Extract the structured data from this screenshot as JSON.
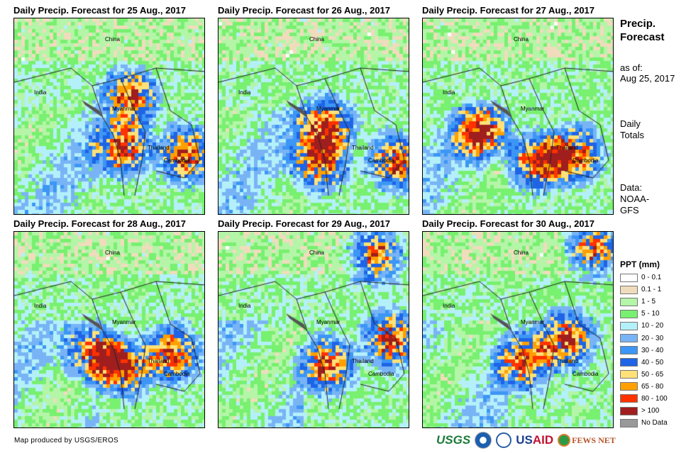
{
  "panels": [
    {
      "title": "Daily Precip. Forecast for 25 Aug., 2017"
    },
    {
      "title": "Daily Precip. Forecast for 26 Aug., 2017"
    },
    {
      "title": "Daily Precip. Forecast for 27 Aug., 2017"
    },
    {
      "title": "Daily Precip. Forecast for 28 Aug., 2017"
    },
    {
      "title": "Daily Precip. Forecast for 29 Aug., 2017"
    },
    {
      "title": "Daily Precip. Forecast for 30 Aug., 2017"
    }
  ],
  "map_labels": {
    "china": "China",
    "india": "India",
    "myanmar": "Myanmar",
    "thailand": "Thailand",
    "cambodia": "Cambodia"
  },
  "side": {
    "heading_line1": "Precip.",
    "heading_line2": "Forecast",
    "asof_label": "as of:",
    "asof_date": "Aug 25, 2017",
    "daily1": "Daily",
    "daily2": "Totals",
    "data1": "Data:",
    "data2": "NOAA-",
    "data3": "GFS"
  },
  "legend": {
    "title": "PPT (mm)",
    "items": [
      {
        "label": "0 - 0.1",
        "color": "#ffffff"
      },
      {
        "label": "0.1 - 1",
        "color": "#f0dcbc"
      },
      {
        "label": "1 - 5",
        "color": "#b4f5a8"
      },
      {
        "label": "5 - 10",
        "color": "#78f070"
      },
      {
        "label": "10 - 20",
        "color": "#b4f0fa"
      },
      {
        "label": "20 - 30",
        "color": "#78b4f5"
      },
      {
        "label": "30 - 40",
        "color": "#3c96f5"
      },
      {
        "label": "40 - 50",
        "color": "#1e64e6"
      },
      {
        "label": "50 - 65",
        "color": "#ffe178"
      },
      {
        "label": "65 - 80",
        "color": "#ffa000"
      },
      {
        "label": "80 - 100",
        "color": "#ff3200"
      },
      {
        "label": "> 100",
        "color": "#a01e1e"
      },
      {
        "label": "No Data",
        "color": "#999999"
      }
    ]
  },
  "footer": {
    "credit": "Map produced by USGS/EROS",
    "logo_usgs": "USGS",
    "logo_usaid_a": "US",
    "logo_usaid_b": "AID",
    "logo_fews": "FEWS NET"
  }
}
